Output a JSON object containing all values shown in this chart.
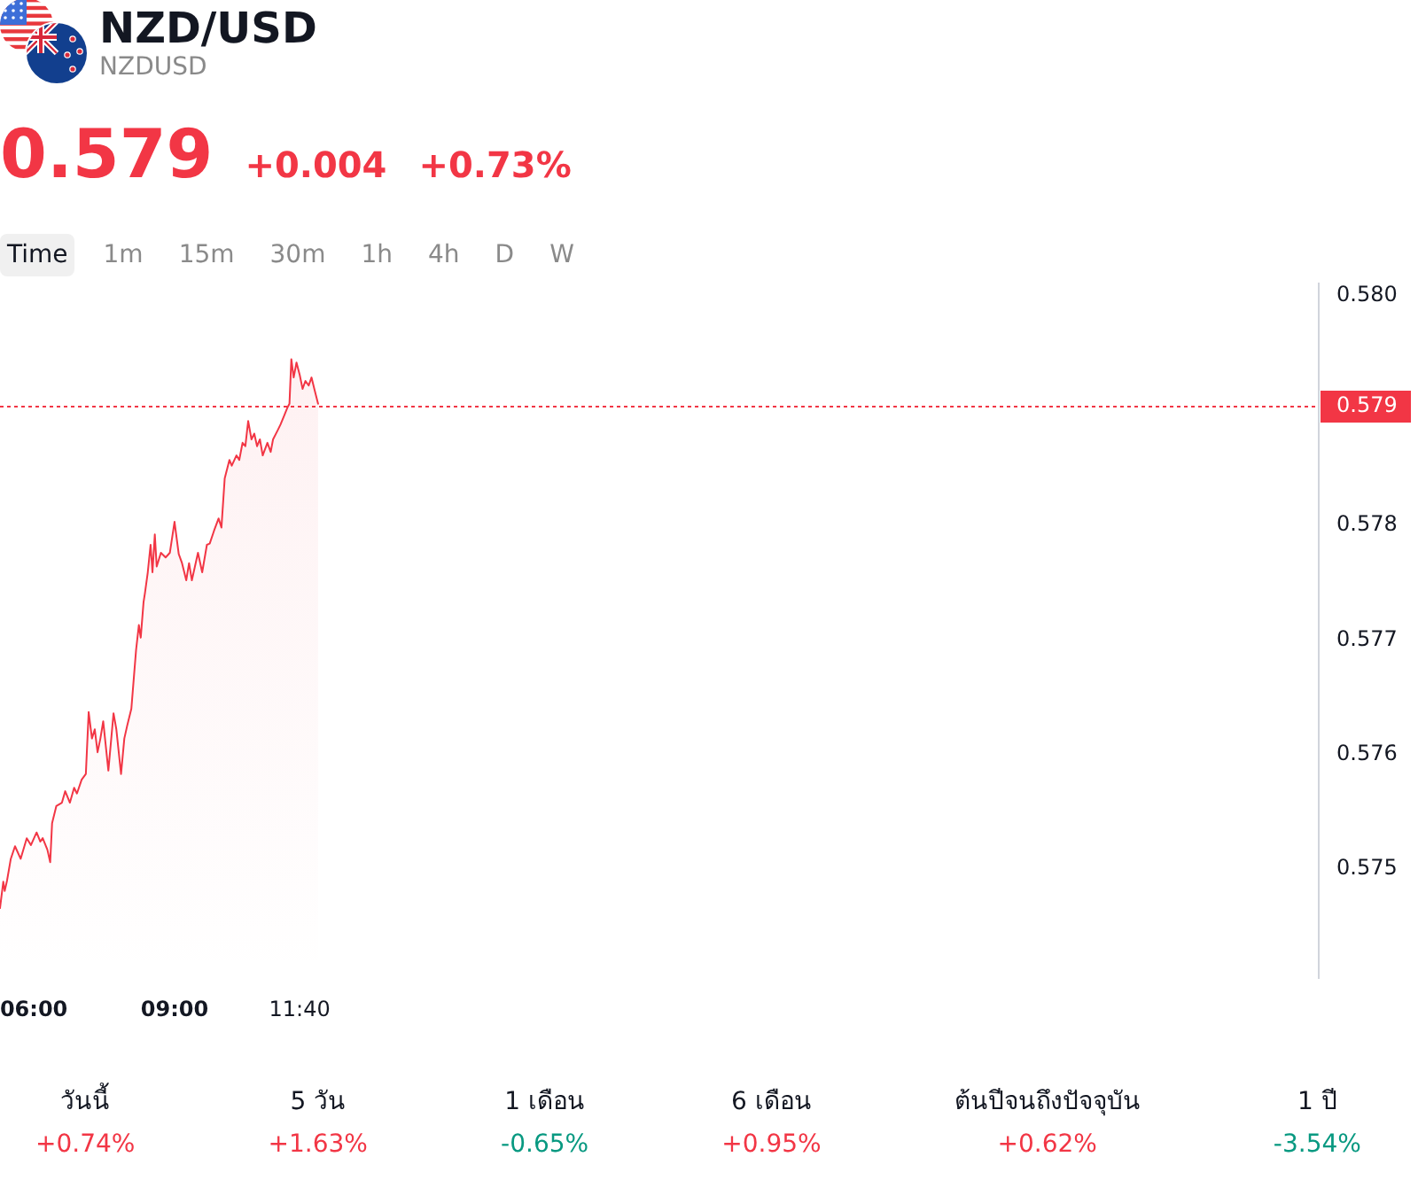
{
  "chart_data": [
    {
      "type": "area",
      "title": "NZD/USD",
      "subtitle": "NZDUSD",
      "annotations": [
        "0.579",
        "+0.004",
        "+0.73%",
        "Time",
        "1m",
        "15m",
        "30m",
        "1h",
        "4h",
        "D",
        "W"
      ],
      "x": [
        5.28,
        5.35,
        5.38,
        5.43,
        5.51,
        5.6,
        5.72,
        5.85,
        5.94,
        6.06,
        6.14,
        6.19,
        6.29,
        6.35,
        6.39,
        6.48,
        6.6,
        6.67,
        6.77,
        6.86,
        6.92,
        7.02,
        7.11,
        7.17,
        7.24,
        7.3,
        7.36,
        7.42,
        7.48,
        7.59,
        7.7,
        7.76,
        7.86,
        7.93,
        7.99,
        8.08,
        8.18,
        8.24,
        8.28,
        8.34,
        8.37,
        8.43,
        8.49,
        8.53,
        8.58,
        8.62,
        8.71,
        8.81,
        8.9,
        9.0,
        9.09,
        9.16,
        9.25,
        9.31,
        9.37,
        9.5,
        9.59,
        9.69,
        9.75,
        9.84,
        9.94,
        10.0,
        10.07,
        10.17,
        10.22,
        10.32,
        10.38,
        10.45,
        10.51,
        10.57,
        10.64,
        10.7,
        10.76,
        10.82,
        10.88,
        10.98,
        11.05,
        11.1,
        11.2,
        11.26,
        11.33,
        11.41,
        11.45,
        11.49,
        11.54,
        11.6,
        11.67,
        11.73,
        11.79,
        11.86,
        11.92,
        11.98,
        12.06
      ],
      "values": [
        0.57466,
        0.57489,
        0.57481,
        0.5749,
        0.57509,
        0.5752,
        0.57509,
        0.57527,
        0.57521,
        0.57532,
        0.57524,
        0.57527,
        0.57517,
        0.57506,
        0.5754,
        0.57555,
        0.57558,
        0.57568,
        0.57558,
        0.57571,
        0.57566,
        0.57578,
        0.57583,
        0.57637,
        0.57614,
        0.57622,
        0.57602,
        0.57614,
        0.57629,
        0.57586,
        0.57636,
        0.57622,
        0.57583,
        0.57614,
        0.57625,
        0.5764,
        0.57691,
        0.57713,
        0.57702,
        0.57733,
        0.57741,
        0.57759,
        0.57783,
        0.57759,
        0.57792,
        0.57764,
        0.57776,
        0.57772,
        0.57776,
        0.57803,
        0.57775,
        0.57767,
        0.57752,
        0.57767,
        0.57752,
        0.57776,
        0.57759,
        0.57783,
        0.57784,
        0.57795,
        0.57806,
        0.57798,
        0.57841,
        0.57857,
        0.57852,
        0.57861,
        0.57857,
        0.57872,
        0.57869,
        0.57891,
        0.57875,
        0.5788,
        0.57869,
        0.57875,
        0.57861,
        0.57872,
        0.57864,
        0.57875,
        0.57883,
        0.57888,
        0.57895,
        0.57903,
        0.57906,
        0.57945,
        0.57929,
        0.57942,
        0.57931,
        0.57919,
        0.57926,
        0.57922,
        0.57929,
        0.57919,
        0.57906
      ],
      "color": "#f23645",
      "xlim": [
        5.28,
        33.39
      ],
      "xticks": [
        {
          "value": 6,
          "label": "06:00"
        },
        {
          "value": 9,
          "label": "09:00"
        },
        {
          "value": 11.667,
          "label": "11:40"
        }
      ],
      "ylim": [
        0.57405,
        0.58011
      ],
      "yticks": [
        0.575,
        0.576,
        0.577,
        0.578,
        {
          "value": 0.58,
          "label": "0.580"
        }
      ],
      "ref_lines": [
        {
          "axis": "y",
          "value": 0.57905,
          "label": "0.579",
          "color": "#f23645",
          "line_style": "dotted"
        }
      ]
    },
    {
      "type": "other",
      "categories": [
        "วันนี้",
        "5 วัน",
        "1 เดือน",
        "6 เดือน",
        "ต้นปีจนถึงปัจจุบัน",
        "1 ปี"
      ],
      "value_labels": [
        "+0.74%",
        "+1.63%",
        "-0.65%",
        "+0.95%",
        "+0.62%",
        "-3.54%"
      ],
      "colors": [
        "#f23645",
        "#f23645",
        "#089981",
        "#f23645",
        "#f23645",
        "#089981"
      ]
    }
  ]
}
